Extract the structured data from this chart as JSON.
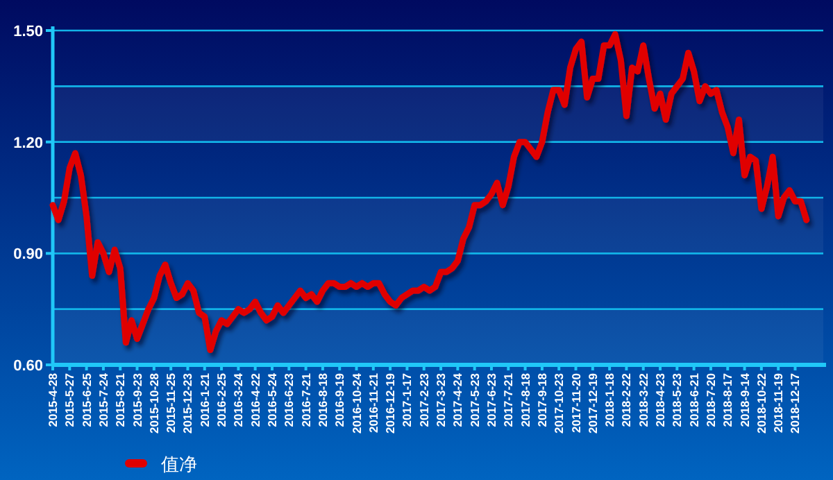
{
  "chart_data": {
    "type": "line",
    "categories": [
      "2015-4-28",
      null,
      null,
      "2015-5-27",
      null,
      null,
      "2015-6-25",
      null,
      null,
      "2015-7-24",
      null,
      null,
      "2015-8-21",
      null,
      null,
      "2015-9-23",
      null,
      null,
      "2015-10-28",
      null,
      null,
      "2015-11-25",
      null,
      null,
      "2015-12-23",
      null,
      null,
      "2016-1-21",
      null,
      null,
      "2016-2-25",
      null,
      null,
      "2016-3-24",
      null,
      null,
      "2016-4-22",
      null,
      null,
      "2016-5-24",
      null,
      null,
      "2016-6-23",
      null,
      null,
      "2016-7-21",
      null,
      null,
      "2016-8-18",
      null,
      null,
      "2016-9-19",
      null,
      null,
      "2016-10-24",
      null,
      null,
      "2016-11-21",
      null,
      null,
      "2016-12-19",
      null,
      null,
      "2017-1-17",
      null,
      null,
      "2017-2-23",
      null,
      null,
      "2017-3-23",
      null,
      null,
      "2017-4-24",
      null,
      null,
      "2017-5-23",
      null,
      null,
      "2017-6-23",
      null,
      null,
      "2017-7-21",
      null,
      null,
      "2017-8-18",
      null,
      null,
      "2017-9-18",
      null,
      null,
      "2017-10-23",
      null,
      null,
      "2017-11-20",
      null,
      null,
      "2017-12-19",
      null,
      null,
      "2018-1-18",
      null,
      null,
      "2018-2-22",
      null,
      null,
      "2018-3-22",
      null,
      null,
      "2018-4-23",
      null,
      null,
      "2018-5-23",
      null,
      null,
      "2018-6-21",
      null,
      null,
      "2018-7-20",
      null,
      null,
      "2018-8-17",
      null,
      null,
      "2018-9-14",
      null,
      null,
      "2018-10-22",
      null,
      null,
      "2018-11-19",
      null,
      null,
      "2018-12-17",
      null,
      null
    ],
    "series": [
      {
        "name": "值净",
        "color": "#e00000",
        "values": [
          1.03,
          0.99,
          1.04,
          1.13,
          1.17,
          1.11,
          1.0,
          0.84,
          0.93,
          0.9,
          0.85,
          0.91,
          0.86,
          0.66,
          0.72,
          0.67,
          0.71,
          0.75,
          0.78,
          0.84,
          0.87,
          0.82,
          0.78,
          0.79,
          0.82,
          0.8,
          0.74,
          0.73,
          0.64,
          0.69,
          0.72,
          0.71,
          0.73,
          0.75,
          0.74,
          0.75,
          0.77,
          0.74,
          0.72,
          0.73,
          0.76,
          0.74,
          0.76,
          0.78,
          0.8,
          0.78,
          0.79,
          0.77,
          0.8,
          0.82,
          0.82,
          0.81,
          0.81,
          0.82,
          0.81,
          0.82,
          0.81,
          0.82,
          0.82,
          0.79,
          0.77,
          0.76,
          0.78,
          0.79,
          0.8,
          0.8,
          0.81,
          0.8,
          0.81,
          0.85,
          0.85,
          0.86,
          0.88,
          0.94,
          0.97,
          1.03,
          1.03,
          1.04,
          1.06,
          1.09,
          1.03,
          1.08,
          1.16,
          1.2,
          1.2,
          1.18,
          1.16,
          1.2,
          1.28,
          1.34,
          1.34,
          1.3,
          1.4,
          1.45,
          1.47,
          1.32,
          1.37,
          1.37,
          1.46,
          1.46,
          1.49,
          1.42,
          1.27,
          1.4,
          1.39,
          1.46,
          1.37,
          1.29,
          1.33,
          1.26,
          1.33,
          1.35,
          1.37,
          1.44,
          1.39,
          1.31,
          1.35,
          1.33,
          1.34,
          1.28,
          1.24,
          1.17,
          1.26,
          1.11,
          1.16,
          1.15,
          1.02,
          1.08,
          1.16,
          1.0,
          1.05,
          1.07,
          1.04,
          1.04,
          0.99
        ]
      }
    ],
    "ylim": [
      0.6,
      1.5
    ],
    "yticks": [
      {
        "value": 0.6,
        "label": "0.60"
      },
      {
        "value": 0.75,
        "label": null
      },
      {
        "value": 0.9,
        "label": "0.90"
      },
      {
        "value": 1.05,
        "label": null
      },
      {
        "value": 1.2,
        "label": "1.20"
      },
      {
        "value": 1.35,
        "label": null
      },
      {
        "value": 1.5,
        "label": "1.50"
      }
    ],
    "grid": "y",
    "legend": "bottom"
  }
}
